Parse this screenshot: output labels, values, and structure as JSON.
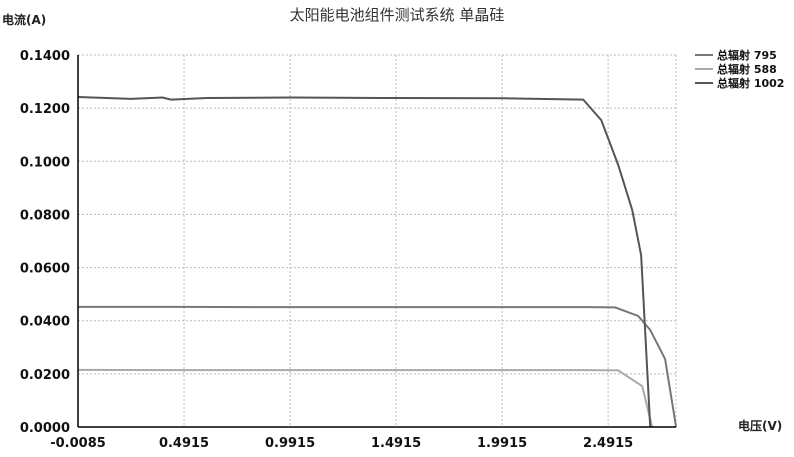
{
  "chart_data": {
    "type": "line",
    "title": "太阳能电池组件测试系统  单晶硅",
    "xlabel": "电压(V)",
    "ylabel": "电流(A)",
    "xlim": [
      -0.0085,
      2.8115
    ],
    "ylim": [
      0,
      0.14
    ],
    "xticks": [
      "-0.0085",
      "0.4915",
      "0.9915",
      "1.4915",
      "1.9915",
      "2.4915"
    ],
    "yticks": [
      "0.0000",
      "0.0200",
      "0.0400",
      "0.0600",
      "0.0800",
      "0.1000",
      "0.1200",
      "0.1400"
    ],
    "grid": true,
    "legend_position": "top-right",
    "series": [
      {
        "name": "总辐射 795",
        "color": "#777777",
        "x": [
          -0.0085,
          0.5,
          1.0,
          1.5,
          2.0,
          2.4,
          2.525,
          2.633,
          2.69,
          2.76,
          2.812
        ],
        "y": [
          0.0452,
          0.0452,
          0.0451,
          0.0451,
          0.0451,
          0.0451,
          0.045,
          0.0418,
          0.0365,
          0.0256,
          0
        ]
      },
      {
        "name": "总辐射 588",
        "color": "#aaaaaa",
        "x": [
          -0.0085,
          0.5,
          1.0,
          1.5,
          2.0,
          2.4,
          2.539,
          2.652,
          2.699
        ],
        "y": [
          0.0215,
          0.0214,
          0.0214,
          0.0214,
          0.0214,
          0.0214,
          0.0213,
          0.0154,
          0
        ]
      },
      {
        "name": "总辐射 1002",
        "color": "#555555",
        "x": [
          -0.0085,
          0.24,
          0.39,
          0.43,
          0.6,
          1.0,
          1.5,
          2.0,
          2.374,
          2.459,
          2.539,
          2.605,
          2.647,
          2.69
        ],
        "y": [
          0.1242,
          0.1235,
          0.124,
          0.1232,
          0.1238,
          0.124,
          0.1238,
          0.1237,
          0.1232,
          0.1155,
          0.0986,
          0.0817,
          0.0647,
          0
        ]
      }
    ]
  }
}
